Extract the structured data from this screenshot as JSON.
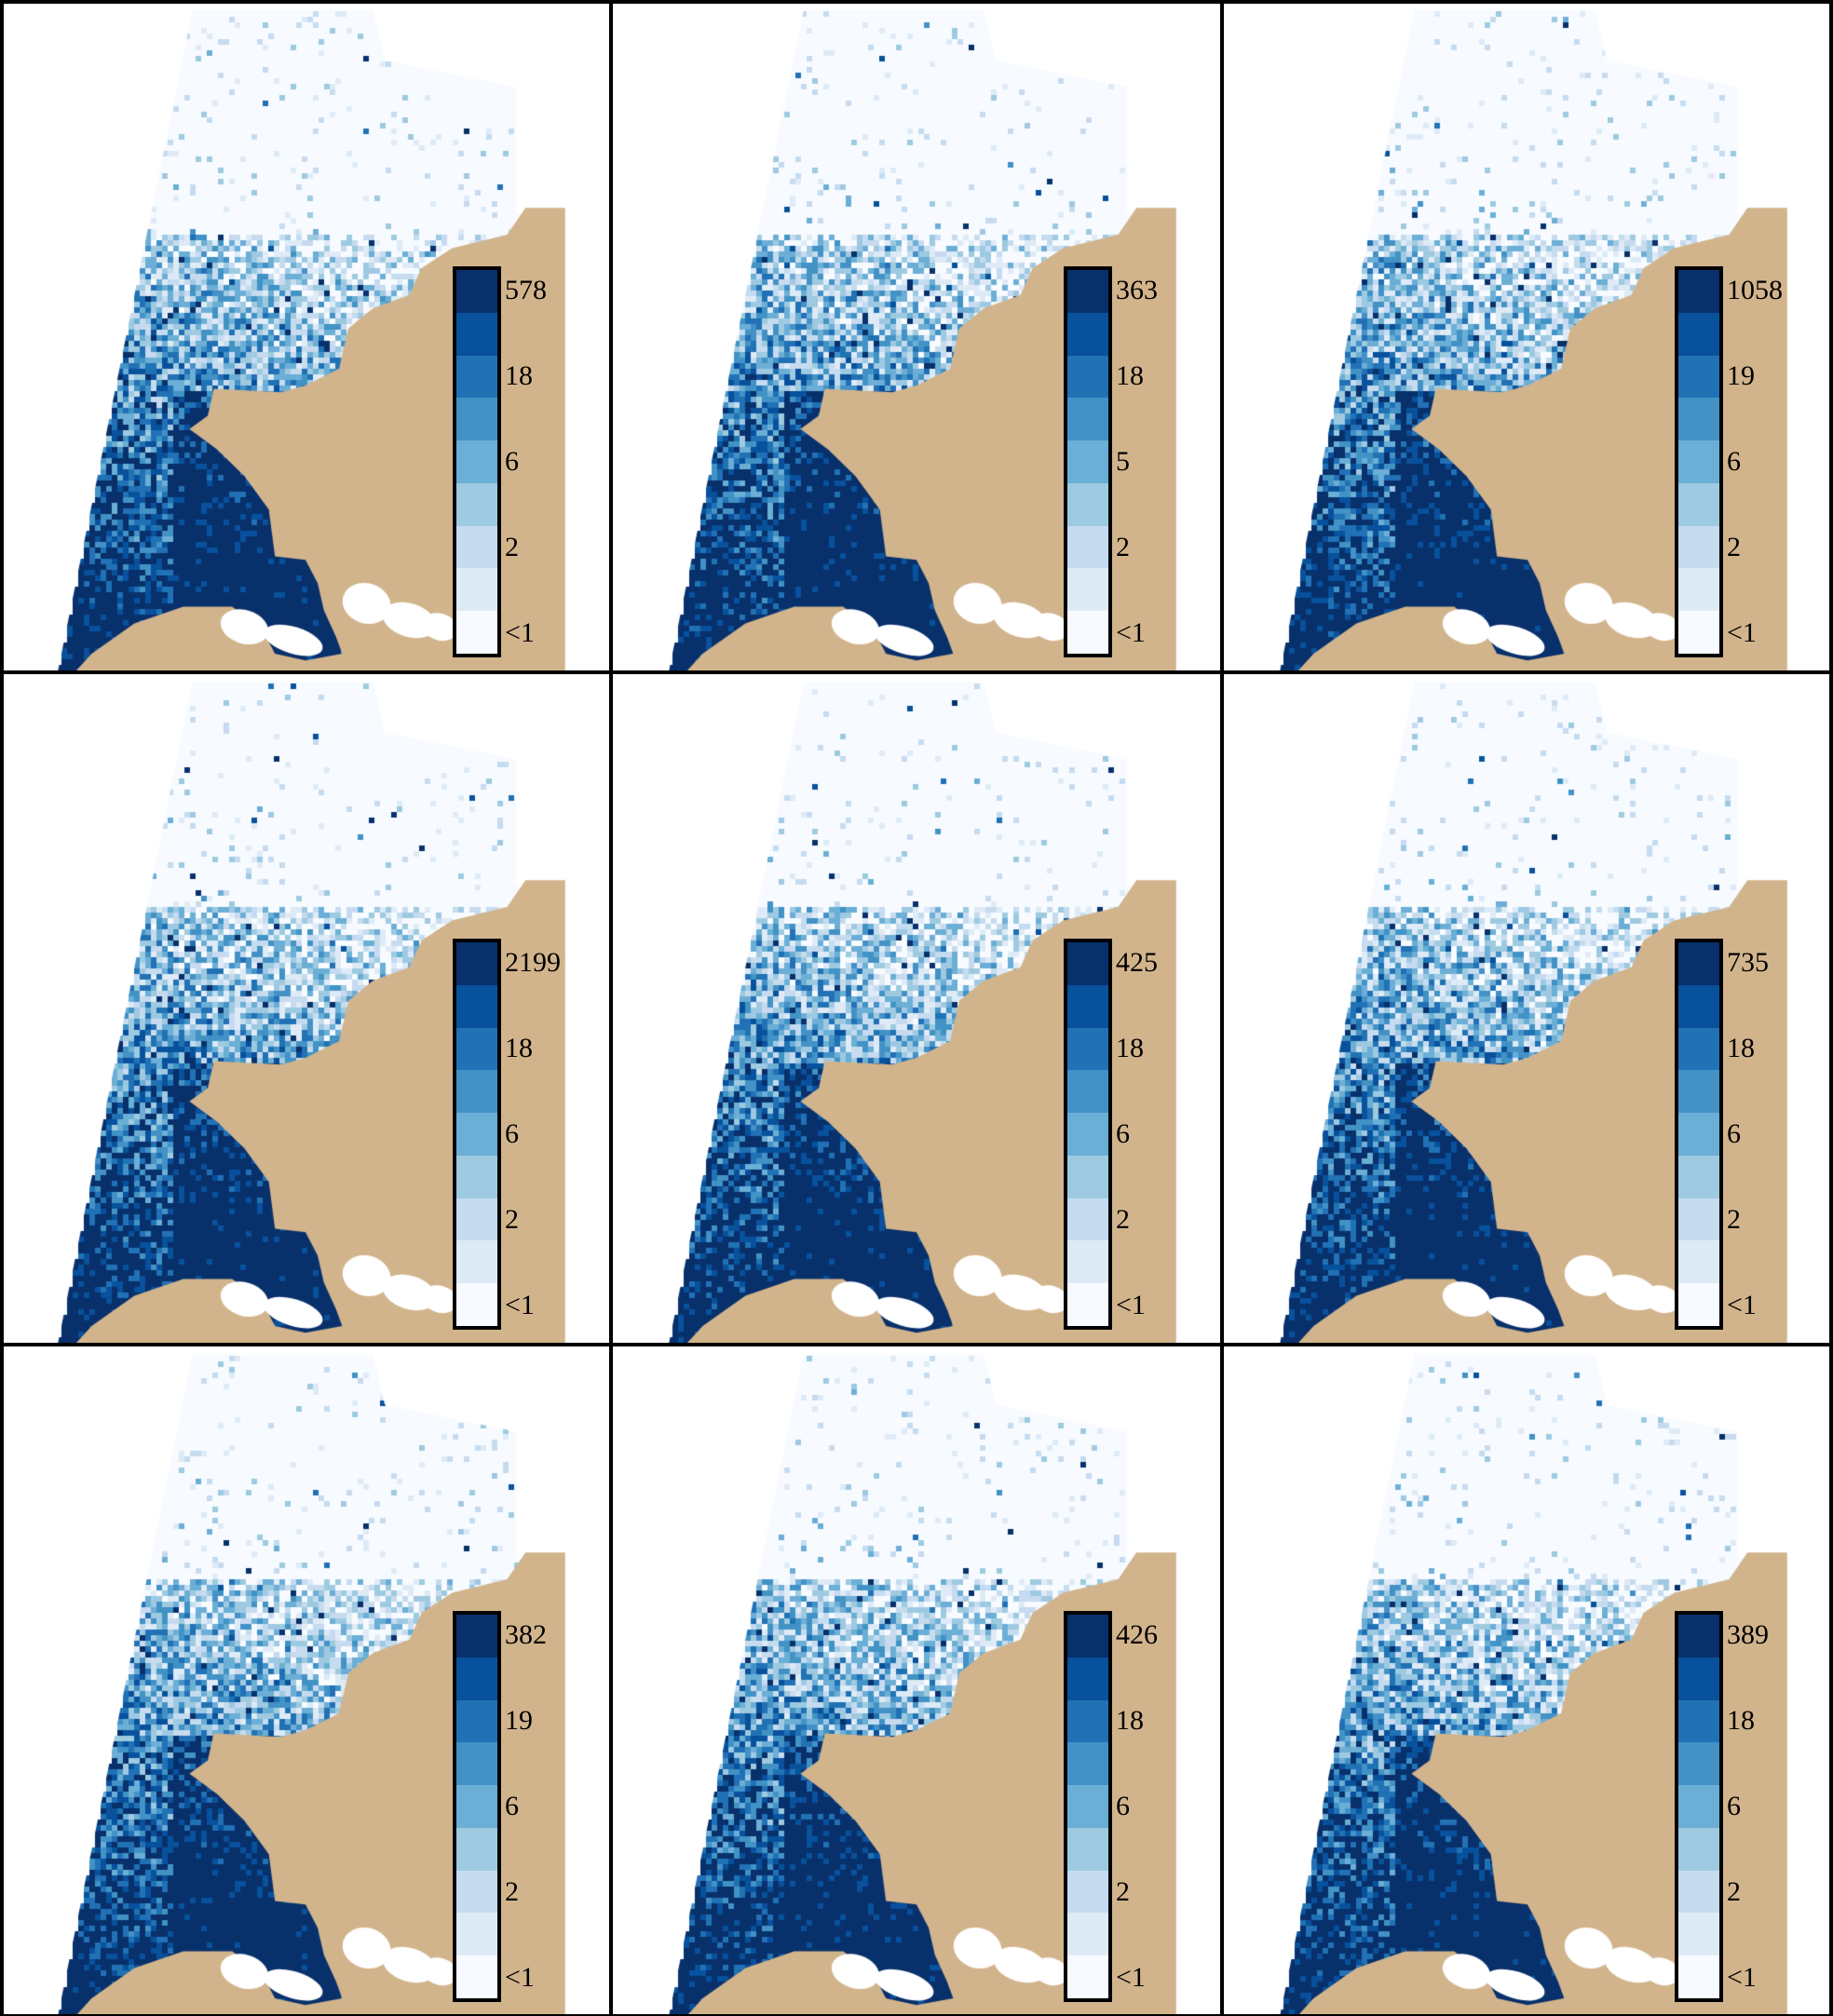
{
  "map": {
    "land_color": "#D2B48C",
    "water_colors": [
      "#F7FBFF",
      "#DEEBF7",
      "#C6DBEF",
      "#9ECAE1",
      "#6BAED6",
      "#4292C6",
      "#2171B5",
      "#08519C",
      "#08306B"
    ],
    "legend_bins": 9,
    "panels": [
      {
        "name": "panel-1",
        "legend_labels": [
          "578",
          "18",
          "6",
          "2",
          "<1"
        ]
      },
      {
        "name": "panel-2",
        "legend_labels": [
          "363",
          "18",
          "5",
          "2",
          "<1"
        ]
      },
      {
        "name": "panel-3",
        "legend_labels": [
          "1058",
          "19",
          "6",
          "2",
          "<1"
        ]
      },
      {
        "name": "panel-4",
        "legend_labels": [
          "2199",
          "18",
          "6",
          "2",
          "<1"
        ]
      },
      {
        "name": "panel-5",
        "legend_labels": [
          "425",
          "18",
          "6",
          "2",
          "<1"
        ]
      },
      {
        "name": "panel-6",
        "legend_labels": [
          "735",
          "18",
          "6",
          "2",
          "<1"
        ]
      },
      {
        "name": "panel-7",
        "legend_labels": [
          "382",
          "19",
          "6",
          "2",
          "<1"
        ]
      },
      {
        "name": "panel-8",
        "legend_labels": [
          "426",
          "18",
          "6",
          "2",
          "<1"
        ]
      },
      {
        "name": "panel-9",
        "legend_labels": [
          "389",
          "18",
          "6",
          "2",
          "<1"
        ]
      }
    ]
  }
}
